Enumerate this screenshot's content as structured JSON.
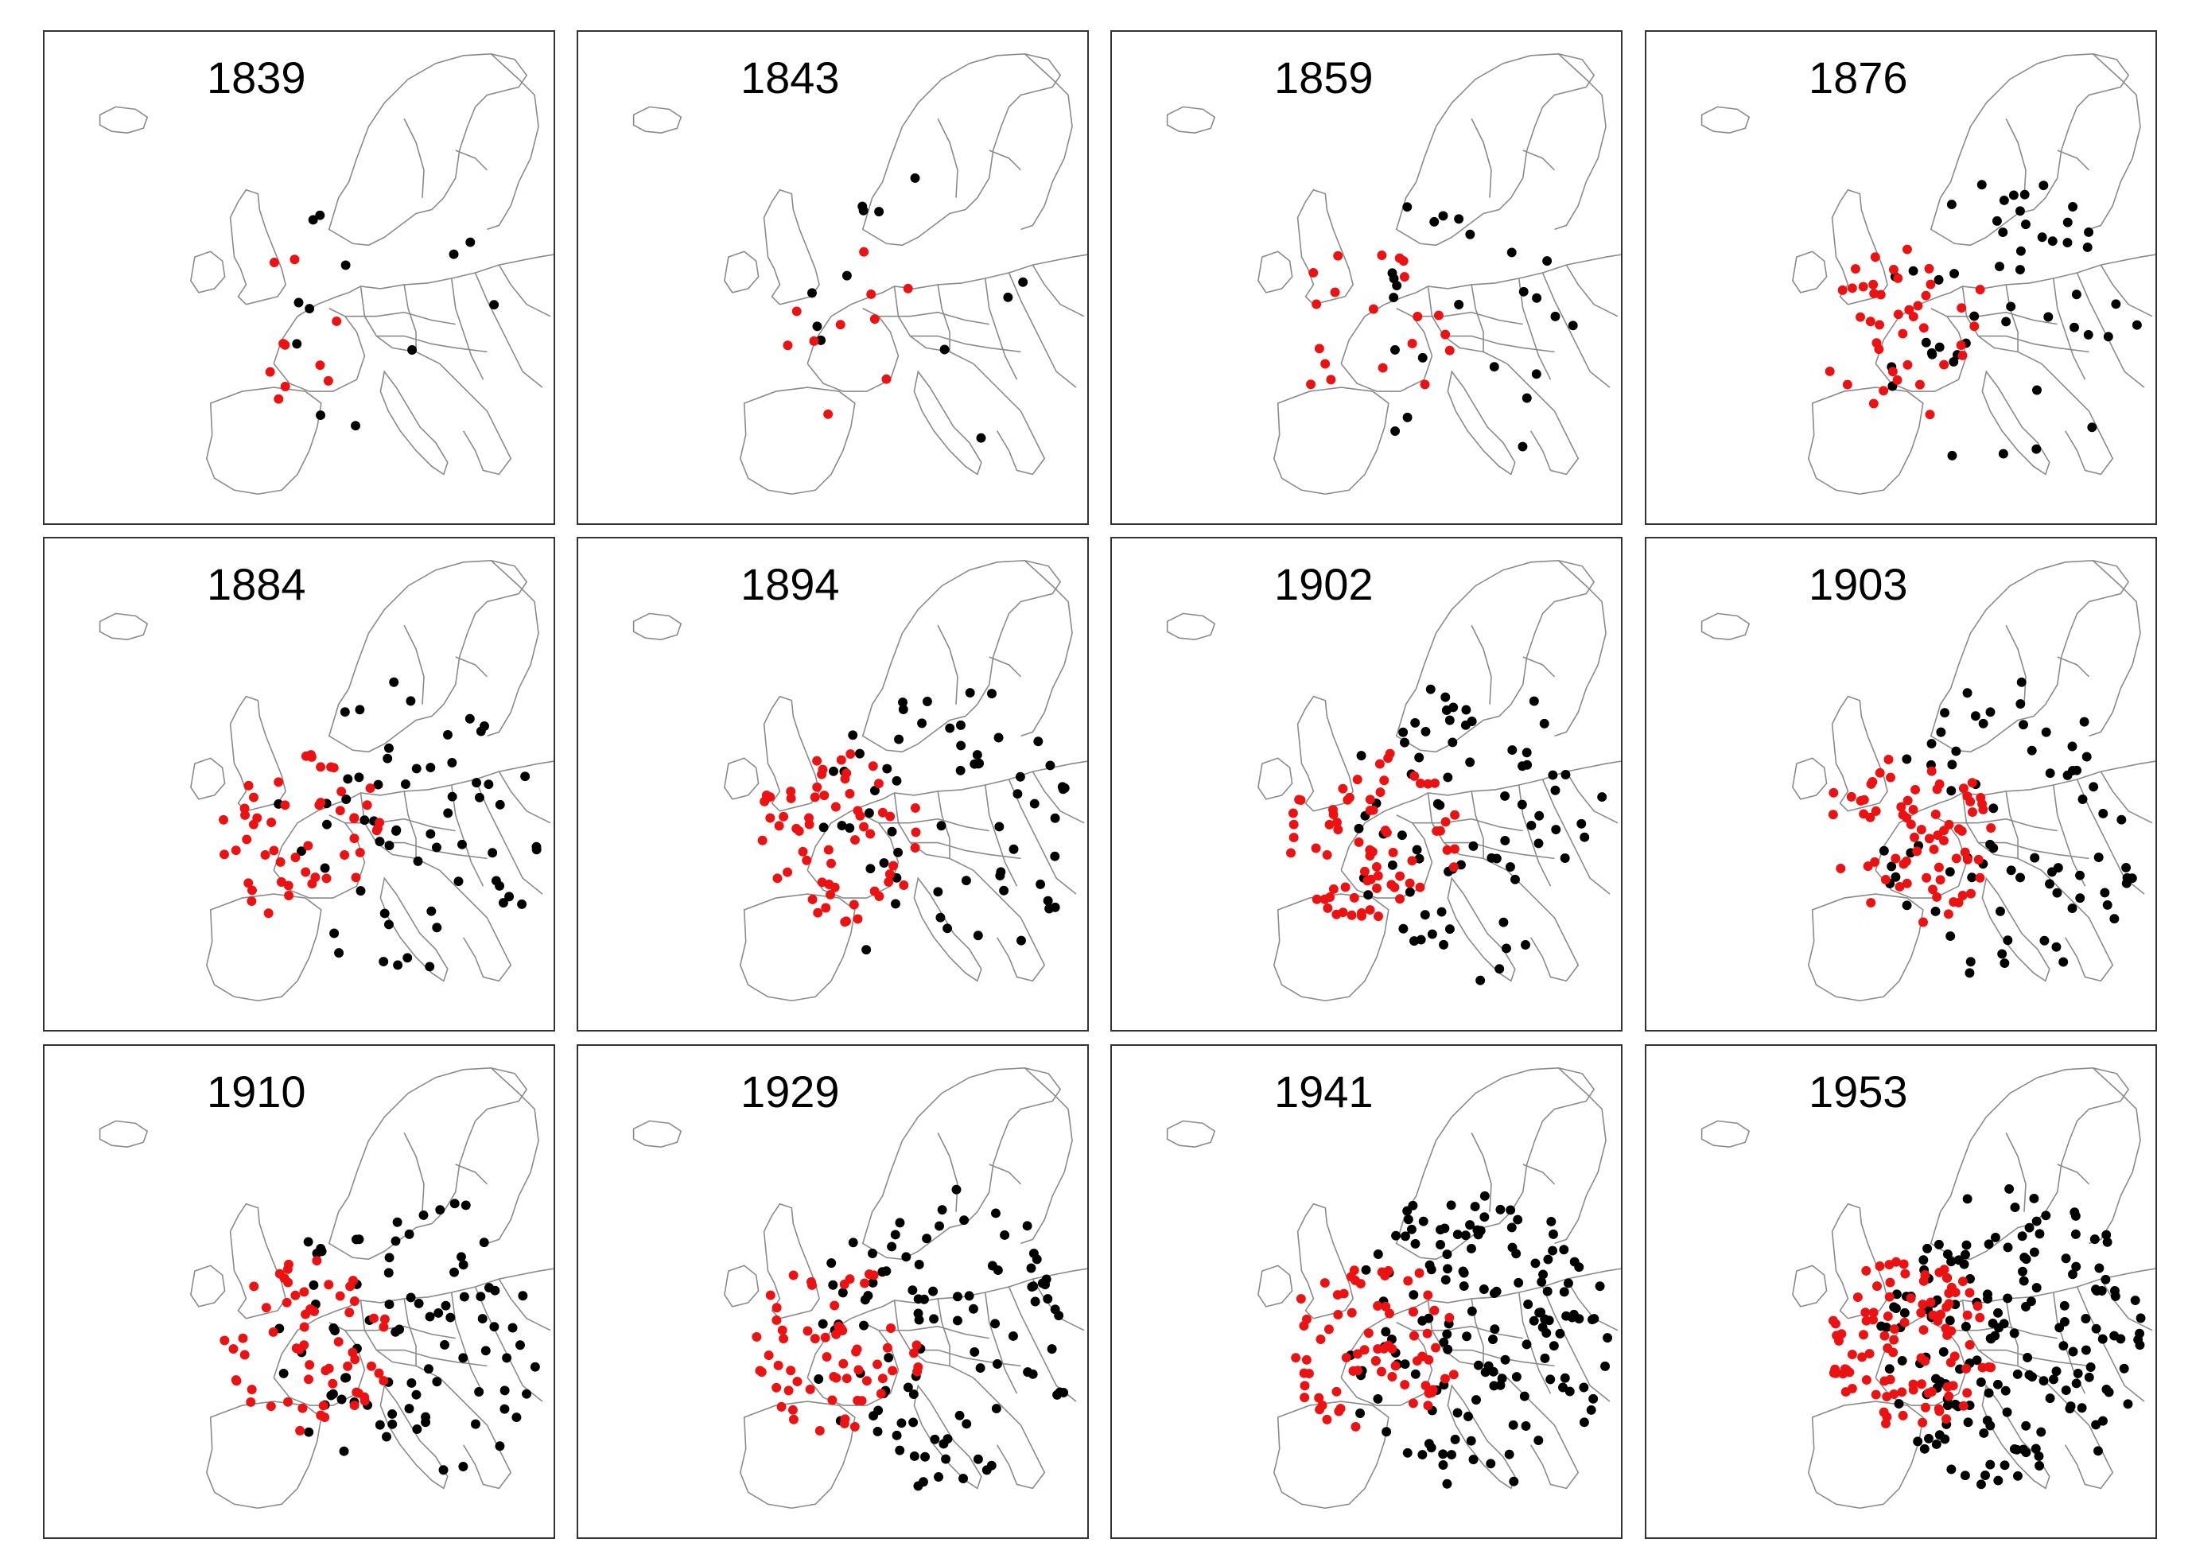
{
  "figure": {
    "colors": {
      "red_marker": "#ee1111",
      "black_marker": "#000000",
      "border_lines": "#8a8a8a",
      "frame": "#333333"
    },
    "panels": [
      {
        "year": "1839",
        "red_density": 1,
        "black_density": 1
      },
      {
        "year": "1843",
        "red_density": 1,
        "black_density": 1
      },
      {
        "year": "1859",
        "red_density": 2,
        "black_density": 2
      },
      {
        "year": "1876",
        "red_density": 4,
        "black_density": 4
      },
      {
        "year": "1884",
        "red_density": 5,
        "black_density": 5
      },
      {
        "year": "1894",
        "red_density": 6,
        "black_density": 5
      },
      {
        "year": "1902",
        "red_density": 7,
        "black_density": 6
      },
      {
        "year": "1903",
        "red_density": 7,
        "black_density": 6
      },
      {
        "year": "1910",
        "red_density": 6,
        "black_density": 7
      },
      {
        "year": "1929",
        "red_density": 6,
        "black_density": 8
      },
      {
        "year": "1941",
        "red_density": 7,
        "black_density": 12
      },
      {
        "year": "1953",
        "red_density": 10,
        "black_density": 14
      }
    ]
  }
}
